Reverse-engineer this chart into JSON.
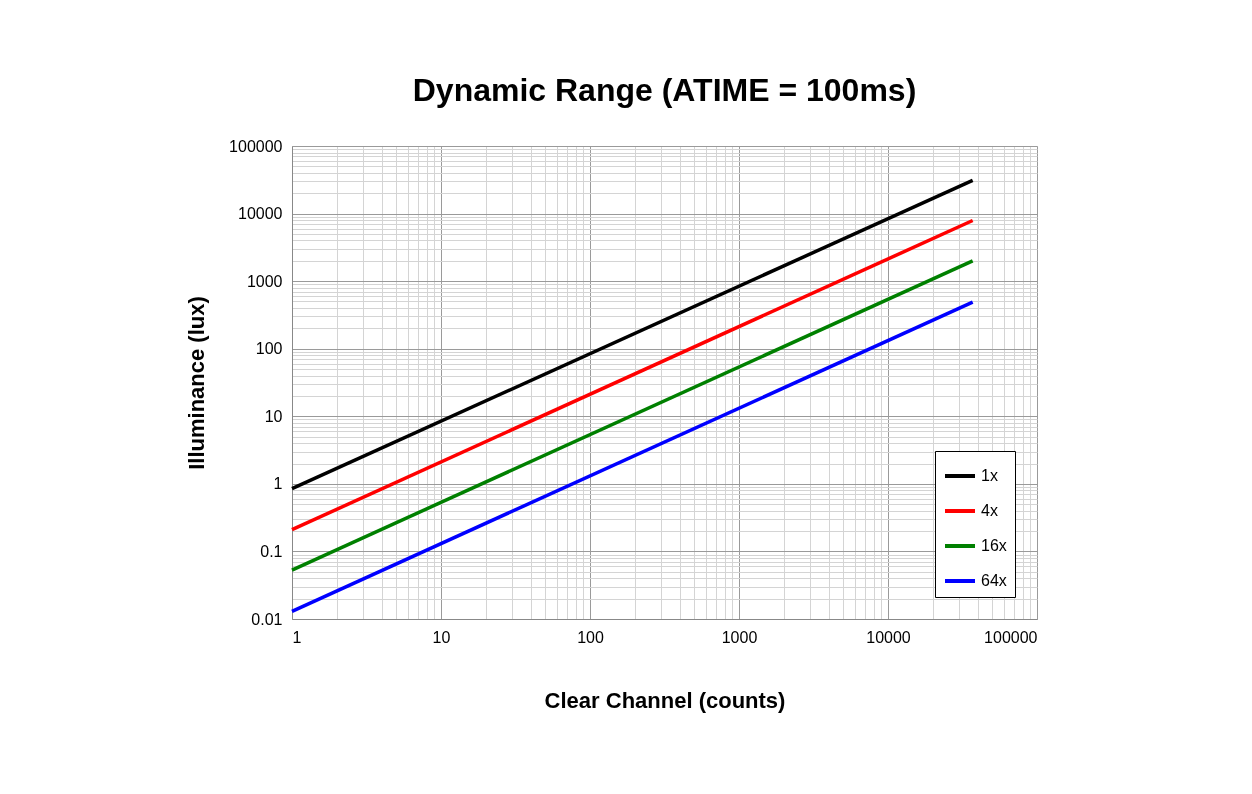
{
  "chart_data": {
    "type": "line",
    "title": "Dynamic Range (ATIME = 100ms)",
    "xlabel": "Clear Channel (counts)",
    "ylabel": "Illuminance (lux)",
    "x": [
      1,
      37000
    ],
    "series": [
      {
        "name": "1x",
        "color": "#000000",
        "values": [
          0.85,
          31000
        ]
      },
      {
        "name": "4x",
        "color": "#ff0000",
        "values": [
          0.21,
          7900
        ]
      },
      {
        "name": "16x",
        "color": "#008000",
        "values": [
          0.053,
          2000
        ]
      },
      {
        "name": "64x",
        "color": "#0000ff",
        "values": [
          0.013,
          490
        ]
      }
    ],
    "log": "xy",
    "xlim": [
      1,
      100000
    ],
    "ylim": [
      0.01,
      100000
    ],
    "xticks": [
      1,
      10,
      100,
      1000,
      10000,
      100000
    ],
    "yticks": [
      0.01,
      0.1,
      1,
      10,
      100,
      1000,
      10000,
      100000
    ],
    "grid": true,
    "legend": "bottom right",
    "marker": "none",
    "line_style": "solid"
  }
}
